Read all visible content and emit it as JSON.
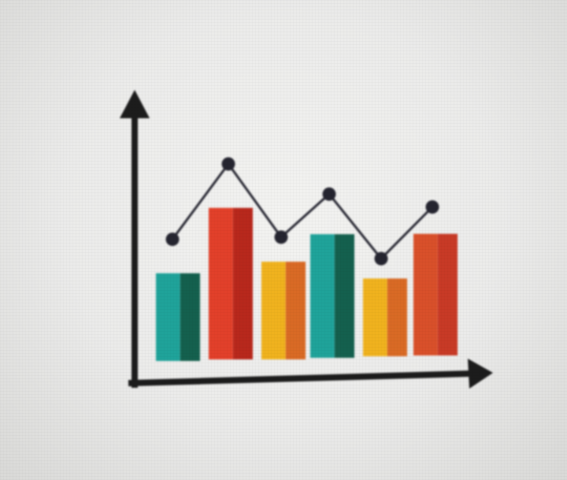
{
  "photo": {
    "subject": "chart-icon",
    "background_color": "#ececea"
  },
  "icon": {
    "axis_color": "#1c1c1c",
    "line_color": "#2a2a35",
    "marker_color": "#252530",
    "teal_light": "#1fa39a",
    "teal_dark": "#14604e",
    "red_light": "#e2402a",
    "red_dark": "#b8281c",
    "yellow_light": "#f0b21e",
    "yellow_dark": "#d96a25",
    "orange_light": "#d9502a",
    "orange_dark": "#c83a26"
  },
  "chart_data": {
    "type": "bar",
    "categories": [
      "",
      "",
      "",
      "",
      "",
      ""
    ],
    "series": [
      {
        "values": [
          4.4,
          7.6,
          4.9,
          6.2,
          3.9,
          6.1
        ]
      },
      {
        "values": [
          5.4,
          8.9,
          5.5,
          7.5,
          4.5,
          6.9
        ]
      }
    ],
    "bar_colors": [
      [
        "#1fa39a",
        "#14604e"
      ],
      [
        "#e2402a",
        "#b8281c"
      ],
      [
        "#f0b21e",
        "#d96a25"
      ],
      [
        "#1fa39a",
        "#14604e"
      ],
      [
        "#f0b21e",
        "#d96a25"
      ],
      [
        "#d9502a",
        "#c83a26"
      ]
    ],
    "title": "",
    "xlabel": "",
    "ylabel": "",
    "ylim": [
      0,
      12
    ],
    "grid": false,
    "legend": "none"
  }
}
